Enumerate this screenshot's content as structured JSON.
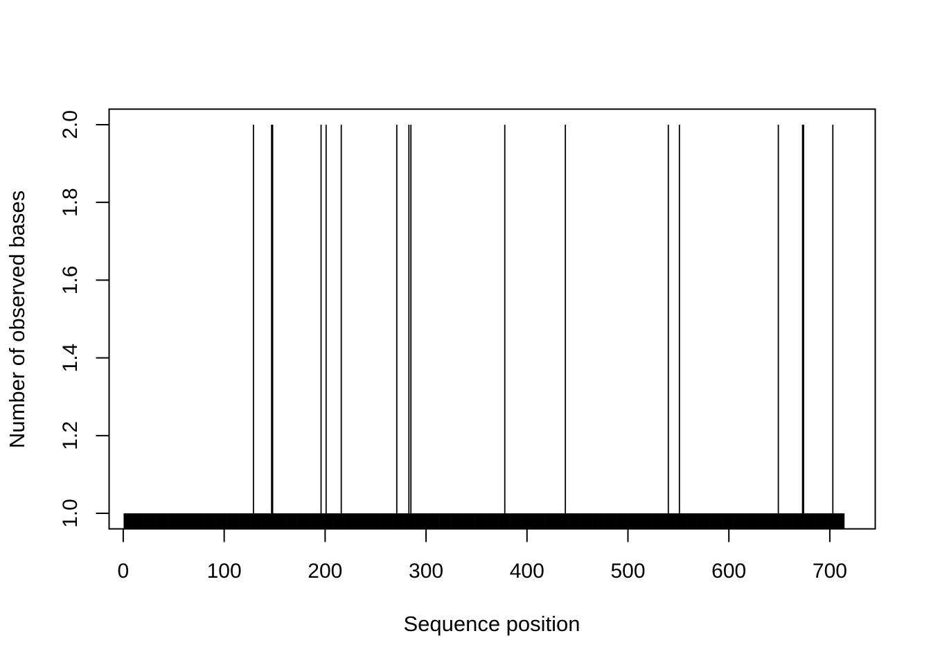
{
  "chart_data": {
    "type": "bar",
    "title": "",
    "xlabel": "Sequence position",
    "ylabel": "Number of observed bases",
    "xlim": [
      -14,
      745
    ],
    "ylim": [
      0.96,
      2.04
    ],
    "baseline": 0.96,
    "x_ticks": [
      0,
      100,
      200,
      300,
      400,
      500,
      600,
      700
    ],
    "x_tick_labels": [
      "0",
      "100",
      "200",
      "300",
      "400",
      "500",
      "600",
      "700"
    ],
    "y_ticks": [
      1.0,
      1.2,
      1.4,
      1.6,
      1.8,
      2.0
    ],
    "y_tick_labels": [
      "1.0",
      "1.2",
      "1.4",
      "1.6",
      "1.8",
      "2.0"
    ],
    "position_range": [
      1,
      714
    ],
    "default_value": 1,
    "positions_with_value_2": [
      129,
      147,
      148,
      196,
      201,
      216,
      271,
      283,
      285,
      378,
      438,
      540,
      551,
      649,
      673,
      674,
      703
    ],
    "bar_color": "#000000",
    "grid": false,
    "legend": "none"
  }
}
